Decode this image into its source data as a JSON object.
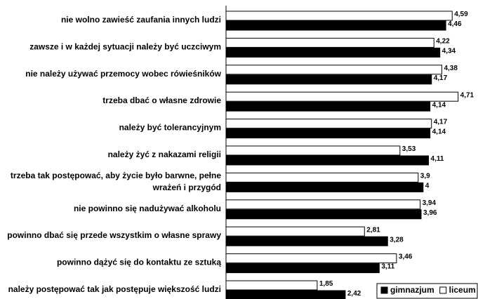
{
  "chart_data": {
    "type": "barh",
    "categories": [
      "nie wolno zawieść zaufania innych ludzi",
      "zawsze i w każdej sytuacji należy być uczciwym",
      "nie należy używać przemocy wobec rówieśników",
      "trzeba dbać o własne zdrowie",
      "należy być tolerancyjnym",
      "należy żyć z nakazami religii",
      "trzeba tak postępować, aby życie było barwne, pełne\nwrażeń i przygód",
      "nie powinno się nadużywać alkoholu",
      "powinno dbać się przede wszystkim o własne sprawy",
      "powinno dążyć się do kontaktu ze sztuką",
      "należy postępować tak jak postępuje większość ludzi"
    ],
    "series": [
      {
        "name": "gimnazjum",
        "color": "#000000",
        "values": [
          4.46,
          4.34,
          4.17,
          4.14,
          4.14,
          4.11,
          4,
          3.96,
          3.28,
          3.11,
          2.42
        ],
        "value_labels": [
          "4,46",
          "4,34",
          "4,17",
          "4,14",
          "4,14",
          "4,11",
          "4",
          "3,96",
          "3,28",
          "3,11",
          "2,42"
        ]
      },
      {
        "name": "liceum",
        "color": "#ffffff",
        "values": [
          4.59,
          4.22,
          4.38,
          4.71,
          4.17,
          3.53,
          3.9,
          3.94,
          2.81,
          3.46,
          1.85
        ],
        "value_labels": [
          "4,59",
          "4,22",
          "4,38",
          "4,71",
          "4,17",
          "3,53",
          "3,9",
          "3,94",
          "2,81",
          "3,46",
          "1,85"
        ]
      }
    ],
    "xlim": [
      0,
      5
    ],
    "legend": "bottom-right"
  }
}
